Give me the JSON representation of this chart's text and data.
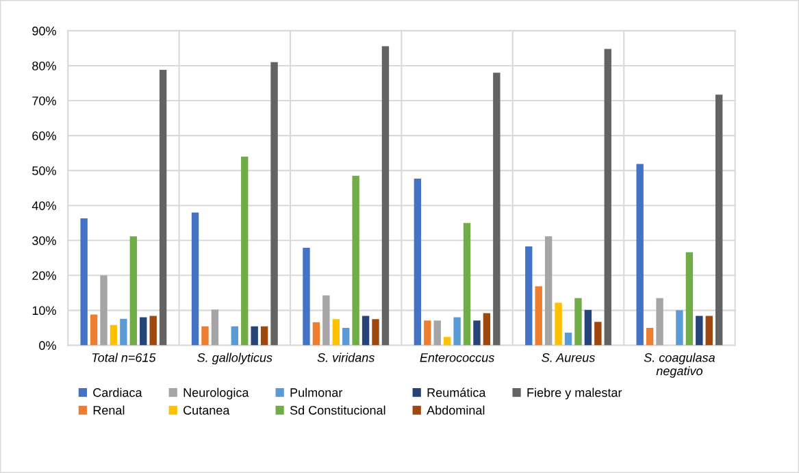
{
  "chart_data": {
    "type": "bar",
    "categories": [
      "Total n=615",
      "S. gallolyticus",
      "S. viridans",
      "Enterococcus",
      "S. Aureus",
      "S. coagulasa\nnegativo"
    ],
    "series": [
      {
        "name": "Cardiaca",
        "color": "#4472c4",
        "values": [
          36.3,
          38,
          27.9,
          47.7,
          28.3,
          51.9
        ]
      },
      {
        "name": "Renal",
        "color": "#ed7d31",
        "values": [
          8.8,
          5.4,
          6.6,
          7.1,
          16.9,
          5
        ]
      },
      {
        "name": "Neurologica",
        "color": "#a5a5a5",
        "values": [
          20,
          10.2,
          14.3,
          7.1,
          31.2,
          13.5
        ]
      },
      {
        "name": "Cutanea",
        "color": "#ffc000",
        "values": [
          5.8,
          0,
          7.5,
          2.4,
          12.2,
          0
        ]
      },
      {
        "name": "Pulmonar",
        "color": "#5b9bd5",
        "values": [
          7.6,
          5.4,
          5,
          8,
          3.6,
          10
        ]
      },
      {
        "name": "Sd Constitucional",
        "color": "#70ad47",
        "values": [
          31.2,
          54,
          48.5,
          35,
          13.5,
          26.6
        ]
      },
      {
        "name": "Reumática",
        "color": "#264478",
        "values": [
          8,
          5.4,
          8.4,
          7.1,
          10.1,
          8.4
        ]
      },
      {
        "name": "Abdominal",
        "color": "#9e480e",
        "values": [
          8.4,
          5.4,
          7.5,
          9.2,
          6.7,
          8.4
        ]
      },
      {
        "name": "Fiebre y malestar",
        "color": "#636363",
        "values": [
          78.8,
          81,
          85.6,
          78,
          84.8,
          71.7
        ]
      }
    ],
    "ylim": [
      0,
      90
    ],
    "yticks": [
      {
        "value": 0,
        "label": "0%"
      },
      {
        "value": 10,
        "label": "10%"
      },
      {
        "value": 20,
        "label": "20%"
      },
      {
        "value": 30,
        "label": "30%"
      },
      {
        "value": 40,
        "label": "40%"
      },
      {
        "value": 50,
        "label": "50%"
      },
      {
        "value": 60,
        "label": "60%"
      },
      {
        "value": 70,
        "label": "70%"
      },
      {
        "value": 80,
        "label": "80%"
      },
      {
        "value": 90,
        "label": "90%"
      }
    ],
    "grid": true,
    "legend": "bottom"
  }
}
